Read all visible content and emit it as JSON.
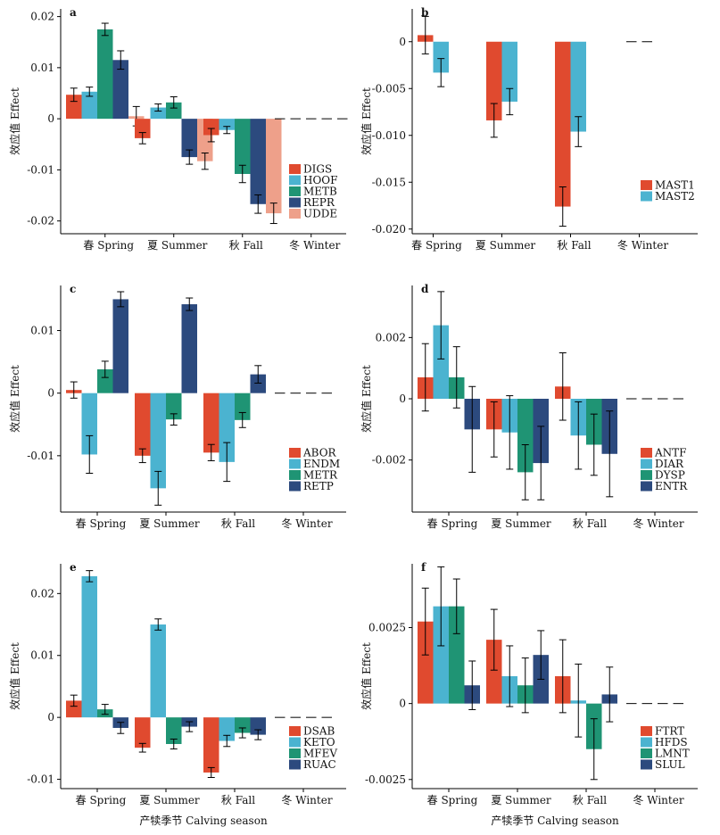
{
  "axis_titles": {
    "y_left": "效应值 Effect",
    "x_bottom": "产犊季节 Calving season"
  },
  "chart_data": [
    {
      "panel": "a",
      "type": "bar",
      "categories": [
        "春 Spring",
        "夏 Summer",
        "秋 Fall",
        "冬 Winter"
      ],
      "ylim": [
        -0.0225,
        0.0215
      ],
      "yticks": [
        -0.02,
        -0.01,
        0,
        0.01,
        0.02
      ],
      "ytick_labels": [
        "-0.02",
        "-0.01",
        "0",
        "0.01",
        "0.02"
      ],
      "legend_position": "right",
      "series": [
        {
          "name": "DIGS",
          "color": "#e04a2f",
          "values": [
            0.0047,
            -0.0038,
            -0.0032,
            0
          ],
          "errors": [
            0.0013,
            0.0011,
            0.0013,
            0
          ]
        },
        {
          "name": "HOOF",
          "color": "#4bb3d0",
          "values": [
            0.0053,
            0.0022,
            -0.0022,
            0
          ],
          "errors": [
            0.0009,
            0.0007,
            0.0007,
            0
          ]
        },
        {
          "name": "METB",
          "color": "#1f9474",
          "values": [
            0.0175,
            0.0032,
            -0.0108,
            0
          ],
          "errors": [
            0.0012,
            0.0011,
            0.0017,
            0
          ]
        },
        {
          "name": "REPR",
          "color": "#2c4a7e",
          "values": [
            0.0115,
            -0.0075,
            -0.0167,
            0
          ],
          "errors": [
            0.0018,
            0.0014,
            0.0018,
            0
          ]
        },
        {
          "name": "UDDE",
          "color": "#eea08a",
          "values": [
            0.0005,
            -0.0083,
            -0.0185,
            0
          ],
          "errors": [
            0.0019,
            0.0016,
            0.002,
            0
          ]
        }
      ]
    },
    {
      "panel": "b",
      "type": "bar",
      "categories": [
        "春 Spring",
        "夏 Summer",
        "秋 Fall",
        "冬 Winter"
      ],
      "ylim": [
        -0.0205,
        0.0035
      ],
      "yticks": [
        -0.02,
        -0.015,
        -0.01,
        -0.005,
        0
      ],
      "ytick_labels": [
        "-0.020",
        "-0.015",
        "-0.010",
        "-0.005",
        "0"
      ],
      "legend_position": "right",
      "series": [
        {
          "name": "MAST1",
          "color": "#e04a2f",
          "values": [
            0.0007,
            -0.0084,
            -0.0176,
            0
          ],
          "errors": [
            0.002,
            0.0018,
            0.0021,
            0
          ]
        },
        {
          "name": "MAST2",
          "color": "#4bb3d0",
          "values": [
            -0.0033,
            -0.0064,
            -0.0096,
            0
          ],
          "errors": [
            0.0015,
            0.0014,
            0.0016,
            0
          ]
        }
      ]
    },
    {
      "panel": "c",
      "type": "bar",
      "categories": [
        "春 Spring",
        "夏 Summer",
        "秋 Fall",
        "冬 Winter"
      ],
      "ylim": [
        -0.019,
        0.0172
      ],
      "yticks": [
        -0.01,
        0,
        0.01
      ],
      "ytick_labels": [
        "-0.01",
        "0",
        "0.01"
      ],
      "legend_position": "right",
      "series": [
        {
          "name": "ABOR",
          "color": "#e04a2f",
          "values": [
            0.0005,
            -0.01,
            -0.0095,
            0
          ],
          "errors": [
            0.0013,
            0.0011,
            0.0013,
            0
          ]
        },
        {
          "name": "ENDM",
          "color": "#4bb3d0",
          "values": [
            -0.0098,
            -0.0152,
            -0.011,
            0
          ],
          "errors": [
            0.003,
            0.0027,
            0.0031,
            0
          ]
        },
        {
          "name": "METR",
          "color": "#1f9474",
          "values": [
            0.0038,
            -0.0042,
            -0.0043,
            0
          ],
          "errors": [
            0.0013,
            0.0009,
            0.0012,
            0
          ]
        },
        {
          "name": "RETP",
          "color": "#2c4a7e",
          "values": [
            0.015,
            0.0142,
            0.003,
            0
          ],
          "errors": [
            0.0012,
            0.001,
            0.0014,
            0
          ]
        }
      ]
    },
    {
      "panel": "d",
      "type": "bar",
      "categories": [
        "春 Spring",
        "夏 Summer",
        "秋 Fall",
        "冬 Winter"
      ],
      "ylim": [
        -0.0037,
        0.0037
      ],
      "yticks": [
        -0.002,
        0,
        0.002
      ],
      "ytick_labels": [
        "-0.002",
        "0",
        "0.002"
      ],
      "legend_position": "right",
      "series": [
        {
          "name": "ANTF",
          "color": "#e04a2f",
          "values": [
            0.0007,
            -0.001,
            0.0004,
            0
          ],
          "errors": [
            0.0011,
            0.0009,
            0.0011,
            0
          ]
        },
        {
          "name": "DIAR",
          "color": "#4bb3d0",
          "values": [
            0.0024,
            -0.0011,
            -0.0012,
            0
          ],
          "errors": [
            0.0011,
            0.0012,
            0.0011,
            0
          ]
        },
        {
          "name": "DYSP",
          "color": "#1f9474",
          "values": [
            0.0007,
            -0.0024,
            -0.0015,
            0
          ],
          "errors": [
            0.001,
            0.0009,
            0.001,
            0
          ]
        },
        {
          "name": "ENTR",
          "color": "#2c4a7e",
          "values": [
            -0.001,
            -0.0021,
            -0.0018,
            0
          ],
          "errors": [
            0.0014,
            0.0012,
            0.0014,
            0
          ]
        }
      ]
    },
    {
      "panel": "e",
      "type": "bar",
      "categories": [
        "春 Spring",
        "夏 Summer",
        "秋 Fall",
        "冬 Winter"
      ],
      "ylim": [
        -0.0115,
        0.0248
      ],
      "yticks": [
        -0.01,
        0,
        0.01,
        0.02
      ],
      "ytick_labels": [
        "-0.01",
        "0",
        "0.01",
        "0.02"
      ],
      "legend_position": "right",
      "series": [
        {
          "name": "DSAB",
          "color": "#e04a2f",
          "values": [
            0.0027,
            -0.0049,
            -0.0089,
            0
          ],
          "errors": [
            0.0009,
            0.0007,
            0.0008,
            0
          ]
        },
        {
          "name": "KETO",
          "color": "#4bb3d0",
          "values": [
            0.0228,
            0.015,
            -0.0038,
            0
          ],
          "errors": [
            0.0009,
            0.0009,
            0.0009,
            0
          ]
        },
        {
          "name": "MFEV",
          "color": "#1f9474",
          "values": [
            0.0013,
            -0.0043,
            -0.0025,
            0
          ],
          "errors": [
            0.0008,
            0.0008,
            0.0008,
            0
          ]
        },
        {
          "name": "RUAC",
          "color": "#2c4a7e",
          "values": [
            -0.0017,
            -0.0015,
            -0.0028,
            0
          ],
          "errors": [
            0.0009,
            0.0008,
            0.0008,
            0
          ]
        }
      ]
    },
    {
      "panel": "f",
      "type": "bar",
      "categories": [
        "春 Spring",
        "夏 Summer",
        "秋 Fall",
        "冬 Winter"
      ],
      "ylim": [
        -0.0028,
        0.0046
      ],
      "yticks": [
        -0.0025,
        0,
        0.0025
      ],
      "ytick_labels": [
        "-0.0025",
        "0",
        "0.0025"
      ],
      "legend_position": "right",
      "series": [
        {
          "name": "FTRT",
          "color": "#e04a2f",
          "values": [
            0.0027,
            0.0021,
            0.0009,
            0
          ],
          "errors": [
            0.0011,
            0.001,
            0.0012,
            0
          ]
        },
        {
          "name": "HFDS",
          "color": "#4bb3d0",
          "values": [
            0.0032,
            0.0009,
            0.0001,
            0
          ],
          "errors": [
            0.0013,
            0.001,
            0.0012,
            0
          ]
        },
        {
          "name": "LMNT",
          "color": "#1f9474",
          "values": [
            0.0032,
            0.0006,
            -0.0015,
            0
          ],
          "errors": [
            0.0009,
            0.0009,
            0.001,
            0
          ]
        },
        {
          "name": "SLUL",
          "color": "#2c4a7e",
          "values": [
            0.0006,
            0.0016,
            0.0003,
            0
          ],
          "errors": [
            0.0008,
            0.0008,
            0.0009,
            0
          ]
        }
      ]
    }
  ]
}
